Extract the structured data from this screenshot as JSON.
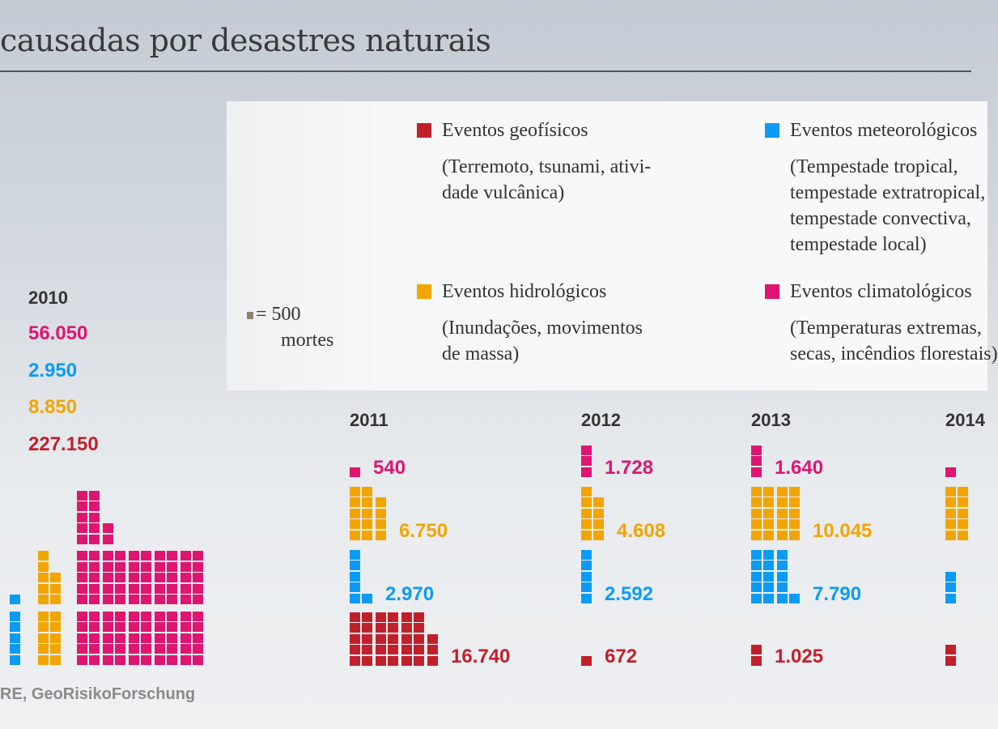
{
  "title": "causadas por desastres naturais",
  "colors": {
    "geo": "#c1202b",
    "met": "#0c9bf4",
    "hid": "#f2a500",
    "cli": "#df1570",
    "unit": "#8b8272"
  },
  "legend": {
    "unit_value": "= 500",
    "unit_label": "mortes",
    "items": [
      {
        "key": "geo",
        "title": "Eventos geofísicos",
        "desc": [
          "(Terremoto, tsunami, ativi-",
          "dade vulcânica)"
        ]
      },
      {
        "key": "met",
        "title": "Eventos meteorológicos",
        "desc": [
          "(Tempestade tropical,",
          "tempestade extratropical,",
          "tempestade convectiva,",
          "tempestade local)"
        ]
      },
      {
        "key": "hid",
        "title": "Eventos hidrológicos",
        "desc": [
          "(Inundações, movimentos",
          "de massa)"
        ]
      },
      {
        "key": "cli",
        "title": "Eventos climatológicos",
        "desc": [
          "(Temperaturas extremas,",
          "secas, incêndios florestais)"
        ]
      }
    ]
  },
  "source": "RE, GeoRisikoForschung",
  "chart_data": {
    "type": "bar",
    "style": "pictogram (1 square = 500 deaths)",
    "unit_per_square": 500,
    "categories": [
      "2010",
      "2011",
      "2012",
      "2013",
      "2014"
    ],
    "series": [
      {
        "name": "Eventos climatológicos",
        "key": "cli",
        "values": [
          56050,
          540,
          1728,
          1640,
          null
        ],
        "labels": [
          "56.050",
          "540",
          "1.728",
          "1.640",
          ""
        ]
      },
      {
        "name": "Eventos meteorológicos",
        "key": "met",
        "values": [
          2950,
          2970,
          2592,
          7790,
          null
        ],
        "labels": [
          "2.950",
          "2.970",
          "2.592",
          "7.790",
          ""
        ]
      },
      {
        "name": "Eventos hidrológicos",
        "key": "hid",
        "values": [
          8850,
          6750,
          4608,
          10045,
          null
        ],
        "labels": [
          "8.850",
          "6.750",
          "4.608",
          "10.045",
          ""
        ]
      },
      {
        "name": "Eventos geofísicos",
        "key": "geo",
        "values": [
          227150,
          16740,
          672,
          1025,
          null
        ],
        "labels": [
          "227.150",
          "16.740",
          "672",
          "1.025",
          ""
        ]
      }
    ],
    "squares_2014": {
      "cli": 1,
      "hid": 10,
      "met": 3,
      "geo": 2
    }
  }
}
